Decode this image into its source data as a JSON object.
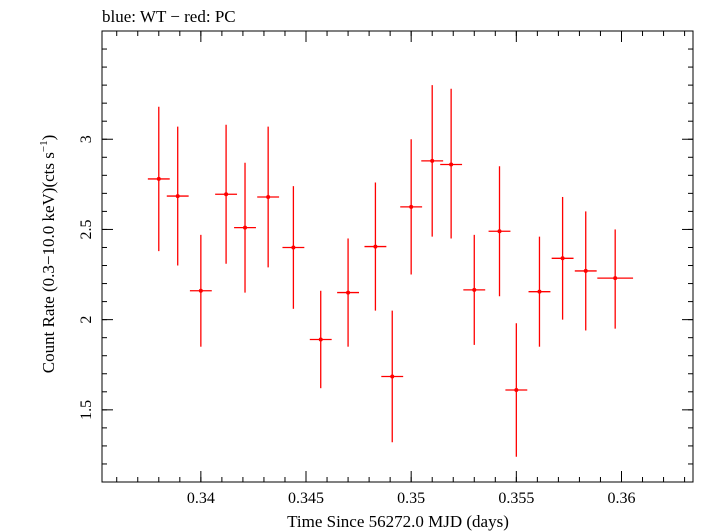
{
  "chart_data": {
    "type": "scatter",
    "title": "blue: WT − red: PC",
    "xlabel": "Time Since 56272.0 MJD (days)",
    "ylabel_main": "Count Rate (0.3−10.0 keV)(cts s",
    "ylabel_sup": "−1",
    "ylabel_end": ")",
    "xlim": [
      0.3353,
      0.3634
    ],
    "ylim": [
      1.1,
      3.6
    ],
    "x_ticks": [
      0.34,
      0.345,
      0.35,
      0.355,
      0.36
    ],
    "x_tick_labels": [
      "0.34",
      "0.345",
      "0.35",
      "0.355",
      "0.36"
    ],
    "x_minor_step": 0.001,
    "y_ticks": [
      1.5,
      2,
      2.5,
      3
    ],
    "y_tick_labels": [
      "1.5",
      "2",
      "2.5",
      "3"
    ],
    "y_minor_step": 0.1,
    "grid": false,
    "legend": "none",
    "color": "#ff0000",
    "series": [
      {
        "points": [
          {
            "x": 0.338,
            "xerr": 0.00052,
            "y": 2.78,
            "ylo": 2.38,
            "yhi": 3.18
          },
          {
            "x": 0.3389,
            "xerr": 0.00052,
            "y": 2.685,
            "ylo": 2.3,
            "yhi": 3.07
          },
          {
            "x": 0.34,
            "xerr": 0.00052,
            "y": 2.16,
            "ylo": 1.85,
            "yhi": 2.47
          },
          {
            "x": 0.3412,
            "xerr": 0.00052,
            "y": 2.695,
            "ylo": 2.31,
            "yhi": 3.08
          },
          {
            "x": 0.3421,
            "xerr": 0.00052,
            "y": 2.51,
            "ylo": 2.15,
            "yhi": 2.87
          },
          {
            "x": 0.3432,
            "xerr": 0.00052,
            "y": 2.68,
            "ylo": 2.29,
            "yhi": 3.07
          },
          {
            "x": 0.3444,
            "xerr": 0.00052,
            "y": 2.4,
            "ylo": 2.06,
            "yhi": 2.74
          },
          {
            "x": 0.3457,
            "xerr": 0.00052,
            "y": 1.89,
            "ylo": 1.62,
            "yhi": 2.16
          },
          {
            "x": 0.347,
            "xerr": 0.00052,
            "y": 2.15,
            "ylo": 1.85,
            "yhi": 2.45
          },
          {
            "x": 0.3483,
            "xerr": 0.00052,
            "y": 2.405,
            "ylo": 2.05,
            "yhi": 2.76
          },
          {
            "x": 0.3491,
            "xerr": 0.00052,
            "y": 1.685,
            "ylo": 1.32,
            "yhi": 2.05
          },
          {
            "x": 0.35,
            "xerr": 0.00052,
            "y": 2.625,
            "ylo": 2.25,
            "yhi": 3.0
          },
          {
            "x": 0.351,
            "xerr": 0.00052,
            "y": 2.88,
            "ylo": 2.46,
            "yhi": 3.3
          },
          {
            "x": 0.3519,
            "xerr": 0.00052,
            "y": 2.86,
            "ylo": 2.45,
            "yhi": 3.28
          },
          {
            "x": 0.353,
            "xerr": 0.00052,
            "y": 2.165,
            "ylo": 1.86,
            "yhi": 2.47
          },
          {
            "x": 0.3542,
            "xerr": 0.00052,
            "y": 2.49,
            "ylo": 2.13,
            "yhi": 2.85
          },
          {
            "x": 0.355,
            "xerr": 0.00052,
            "y": 1.61,
            "ylo": 1.24,
            "yhi": 1.98
          },
          {
            "x": 0.3561,
            "xerr": 0.00052,
            "y": 2.155,
            "ylo": 1.85,
            "yhi": 2.46
          },
          {
            "x": 0.3572,
            "xerr": 0.00052,
            "y": 2.34,
            "ylo": 2.0,
            "yhi": 2.68
          },
          {
            "x": 0.3583,
            "xerr": 0.00052,
            "y": 2.27,
            "ylo": 1.94,
            "yhi": 2.6
          },
          {
            "x": 0.3597,
            "xerr": 0.00085,
            "y": 2.23,
            "ylo": 1.95,
            "yhi": 2.5
          }
        ]
      }
    ]
  }
}
